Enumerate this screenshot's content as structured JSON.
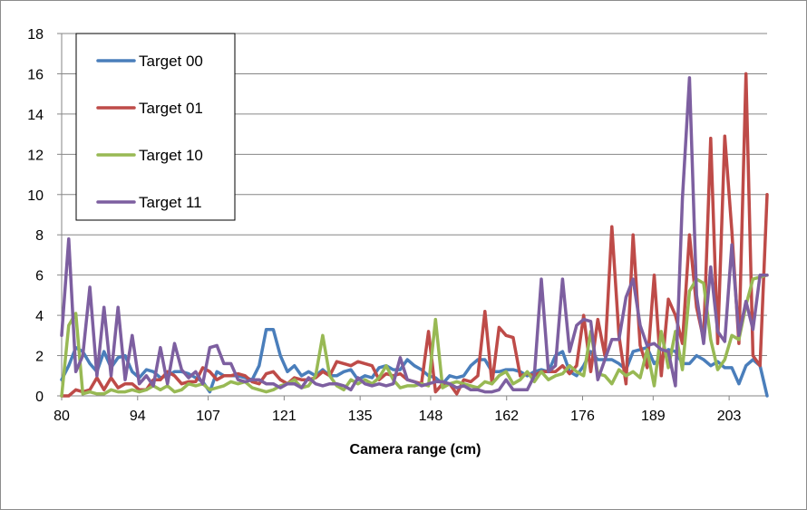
{
  "chart_data": {
    "type": "line",
    "title": "",
    "xlabel": "Camera range (cm)",
    "ylabel": "",
    "ylim": [
      0,
      18
    ],
    "yticks": [
      0,
      2,
      4,
      6,
      8,
      10,
      12,
      14,
      16,
      18
    ],
    "xlim": [
      80,
      210
    ],
    "xticks": [
      80,
      94,
      107,
      121,
      135,
      148,
      162,
      176,
      189,
      203
    ],
    "grid": true,
    "legend_position": "top-left",
    "x": [
      80,
      81.3,
      82.6,
      83.9,
      85.2,
      86.5,
      87.8,
      89.1,
      90.4,
      91.7,
      93,
      94.3,
      95.6,
      96.9,
      98.2,
      99.5,
      100.8,
      102.1,
      103.4,
      104.7,
      106,
      107.3,
      108.6,
      109.9,
      111.2,
      112.5,
      113.8,
      115.1,
      116.4,
      117.7,
      119,
      120.3,
      121.6,
      122.9,
      124.2,
      125.5,
      126.8,
      128.1,
      129.4,
      130.7,
      132,
      133.3,
      134.6,
      135.9,
      137.2,
      138.5,
      139.8,
      141.1,
      142.4,
      143.7,
      145,
      146.3,
      147.6,
      148.9,
      150.2,
      151.5,
      152.8,
      154.1,
      155.4,
      156.7,
      158,
      159.3,
      160.6,
      161.9,
      163.2,
      164.5,
      165.8,
      167.1,
      168.4,
      169.7,
      171,
      172.3,
      173.6,
      174.9,
      176.2,
      177.5,
      178.8,
      180.1,
      181.4,
      182.7,
      184,
      185.3,
      186.6,
      187.9,
      189.2,
      190.5,
      191.8,
      193.1,
      194.4,
      195.7,
      197,
      198.3,
      199.6,
      200.9,
      202.2,
      203.5,
      204.8,
      206.1,
      207.4,
      208.7,
      210
    ],
    "series": [
      {
        "name": "Target 00",
        "color": "#4a7ebb",
        "values": [
          0.8,
          1.5,
          2.4,
          2.2,
          1.6,
          1.2,
          2.2,
          1.4,
          1.9,
          2.0,
          1.2,
          0.9,
          1.3,
          1.2,
          0.9,
          1.0,
          1.2,
          1.2,
          1.1,
          0.9,
          0.7,
          0.2,
          1.2,
          1.0,
          1.0,
          1.0,
          0.9,
          0.8,
          1.5,
          3.3,
          3.3,
          2.0,
          1.2,
          1.5,
          1.0,
          1.2,
          1.0,
          1.3,
          1.0,
          1.0,
          1.2,
          1.3,
          0.8,
          1.0,
          0.9,
          1.4,
          1.5,
          1.3,
          1.3,
          1.8,
          1.5,
          1.3,
          1.0,
          0.9,
          0.6,
          1.0,
          0.9,
          1.0,
          1.5,
          1.8,
          1.8,
          1.2,
          1.2,
          1.3,
          1.3,
          1.2,
          1.0,
          1.2,
          1.3,
          1.2,
          2.0,
          2.2,
          1.2,
          1.0,
          1.5,
          2.2,
          1.8,
          1.8,
          1.8,
          1.6,
          1.3,
          2.2,
          2.3,
          2.4,
          1.6,
          1.9,
          2.3,
          2.2,
          1.6,
          1.6,
          2.0,
          1.8,
          1.5,
          1.7,
          1.4,
          1.4,
          0.6,
          1.5,
          1.8,
          1.5,
          0.0
        ]
      },
      {
        "name": "Target 01",
        "color": "#be4b48",
        "values": [
          0.0,
          0.0,
          0.3,
          0.2,
          0.3,
          0.9,
          0.3,
          0.9,
          0.4,
          0.6,
          0.6,
          0.3,
          0.3,
          0.8,
          0.8,
          1.2,
          1.0,
          0.6,
          0.7,
          0.7,
          1.4,
          1.2,
          0.8,
          1.0,
          1.0,
          1.1,
          1.0,
          0.7,
          0.6,
          1.1,
          1.2,
          0.8,
          0.6,
          0.9,
          0.8,
          0.8,
          0.9,
          1.2,
          1.0,
          1.7,
          1.6,
          1.5,
          1.7,
          1.6,
          1.5,
          0.8,
          1.1,
          1.0,
          1.1,
          0.8,
          0.7,
          0.6,
          3.2,
          0.2,
          0.6,
          0.6,
          0.1,
          0.8,
          0.7,
          1.0,
          4.2,
          0.6,
          3.4,
          3.0,
          2.9,
          1.0,
          1.1,
          1.0,
          1.2,
          1.2,
          1.2,
          1.5,
          1.1,
          1.5,
          4.0,
          1.2,
          3.8,
          2.0,
          8.4,
          3.0,
          0.6,
          8.0,
          2.5,
          1.4,
          6.0,
          1.0,
          4.8,
          4.0,
          2.6,
          8.0,
          4.4,
          2.8,
          12.8,
          2.6,
          12.9,
          8.2,
          2.6,
          16.0,
          2.0,
          1.5,
          10.0
        ]
      },
      {
        "name": "Target 10",
        "color": "#98b954",
        "values": [
          0.0,
          3.5,
          4.1,
          0.1,
          0.2,
          0.1,
          0.1,
          0.3,
          0.2,
          0.2,
          0.3,
          0.2,
          0.3,
          0.5,
          0.3,
          0.5,
          0.2,
          0.3,
          0.6,
          0.5,
          0.6,
          0.3,
          0.4,
          0.5,
          0.7,
          0.6,
          0.7,
          0.4,
          0.3,
          0.2,
          0.3,
          0.5,
          0.6,
          0.8,
          0.4,
          0.5,
          1.0,
          3.0,
          1.0,
          0.5,
          0.3,
          0.8,
          0.6,
          0.8,
          0.6,
          0.9,
          1.5,
          0.8,
          0.4,
          0.5,
          0.5,
          0.6,
          0.5,
          3.8,
          0.4,
          0.6,
          0.7,
          0.6,
          0.5,
          0.4,
          0.7,
          0.6,
          1.0,
          1.2,
          0.6,
          0.8,
          1.2,
          0.7,
          1.2,
          0.8,
          1.0,
          1.1,
          1.5,
          1.2,
          1.0,
          3.2,
          1.1,
          1.0,
          0.6,
          1.3,
          1.0,
          1.2,
          0.9,
          2.3,
          0.5,
          3.2,
          1.4,
          3.2,
          1.3,
          5.2,
          5.8,
          5.6,
          2.8,
          1.3,
          1.8,
          3.0,
          2.8,
          4.5,
          5.8,
          5.9,
          6.0
        ]
      },
      {
        "name": "Target 11",
        "color": "#7d5fa0",
        "values": [
          3.0,
          7.8,
          1.2,
          2.0,
          5.4,
          1.0,
          4.4,
          1.0,
          4.4,
          0.8,
          3.0,
          0.6,
          1.0,
          0.5,
          2.4,
          0.6,
          2.6,
          1.3,
          0.9,
          1.2,
          0.6,
          2.4,
          2.5,
          1.6,
          1.6,
          0.8,
          0.7,
          0.8,
          0.8,
          0.6,
          0.6,
          0.4,
          0.6,
          0.6,
          0.4,
          0.9,
          0.6,
          0.5,
          0.6,
          0.6,
          0.5,
          0.3,
          0.9,
          0.6,
          0.5,
          0.6,
          0.5,
          0.6,
          1.9,
          0.8,
          0.7,
          0.5,
          0.6,
          0.7,
          0.7,
          0.6,
          0.4,
          0.5,
          0.3,
          0.3,
          0.2,
          0.2,
          0.3,
          0.8,
          0.3,
          0.3,
          0.3,
          1.0,
          5.8,
          1.2,
          1.5,
          5.8,
          2.2,
          3.5,
          3.8,
          3.7,
          0.8,
          1.8,
          2.8,
          2.8,
          4.9,
          5.8,
          3.5,
          2.5,
          2.6,
          2.3,
          2.2,
          0.5,
          9.8,
          15.8,
          5.0,
          2.6,
          6.4,
          3.2,
          2.7,
          7.5,
          3.0,
          4.7,
          3.3,
          6.0,
          6.0
        ]
      }
    ]
  }
}
